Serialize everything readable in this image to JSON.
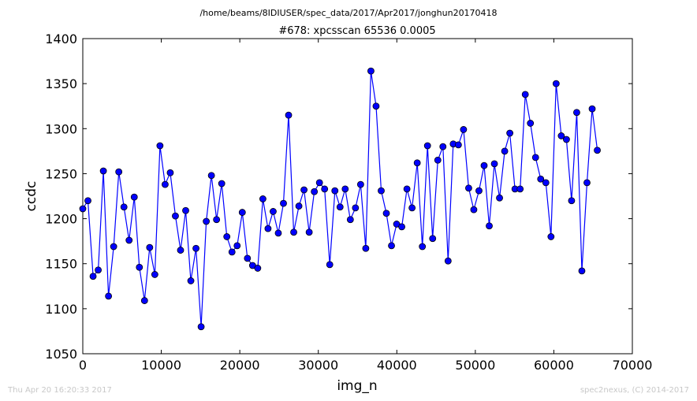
{
  "header": {
    "path": "/home/beams/8IDIUSER/spec_data/2017/Apr2017/jonghun20170418",
    "scan_title": "#678: xpcsscan 65536 0.0005"
  },
  "footer": {
    "timestamp": "Thu Apr 20 16:20:33 2017",
    "credit": "spec2nexus, (C) 2014-2017"
  },
  "colors": {
    "series": "#0000ff",
    "marker_edge": "#000000",
    "axes": "#000000"
  },
  "chart_data": {
    "type": "line",
    "title": "#678: xpcsscan 65536 0.0005",
    "xlabel": "img_n",
    "ylabel": "ccdc",
    "xlim": [
      0,
      70000
    ],
    "ylim": [
      1050,
      1400
    ],
    "xticks": [
      0,
      10000,
      20000,
      30000,
      40000,
      50000,
      60000,
      70000
    ],
    "yticks": [
      1050,
      1100,
      1150,
      1200,
      1250,
      1300,
      1350,
      1400
    ],
    "grid": false,
    "marker": "circle",
    "series": [
      {
        "x": [
          0,
          655,
          1311,
          1966,
          2621,
          3277,
          3932,
          4588,
          5243,
          5898,
          6554,
          7209,
          7864,
          8520,
          9175,
          9830,
          10486,
          11141,
          11796,
          12452,
          13107,
          13763,
          14418,
          15073,
          15729,
          16384,
          17039,
          17695,
          18350,
          19005,
          19661,
          20316,
          20972,
          21627,
          22282,
          22938,
          23593,
          24248,
          24904,
          25559,
          26214,
          26870,
          27525,
          28180,
          28836,
          29491,
          30147,
          30802,
          31457,
          32113,
          32768,
          33423,
          34079,
          34734,
          35389,
          36045,
          36700,
          37356,
          38011,
          38666,
          39322,
          39977,
          40632,
          41288,
          41943,
          42598,
          43254,
          43909,
          44565,
          45220,
          45875,
          46531,
          47186,
          47841,
          48497,
          49152,
          49807,
          50463,
          51118,
          51773,
          52429,
          53084,
          53740,
          54395,
          55050,
          55706,
          56361,
          57016,
          57672,
          58327,
          58982,
          59638,
          60293,
          60949,
          61604,
          62259,
          62915,
          63570,
          64225,
          64881,
          65536
        ],
        "y": [
          1211,
          1220,
          1136,
          1143,
          1253,
          1114,
          1169,
          1252,
          1213,
          1176,
          1224,
          1146,
          1109,
          1168,
          1138,
          1281,
          1238,
          1251,
          1203,
          1165,
          1209,
          1131,
          1167,
          1080,
          1197,
          1248,
          1199,
          1239,
          1180,
          1163,
          1170,
          1207,
          1156,
          1148,
          1145,
          1222,
          1189,
          1208,
          1184,
          1217,
          1315,
          1185,
          1214,
          1232,
          1185,
          1230,
          1240,
          1233,
          1149,
          1231,
          1213,
          1233,
          1199,
          1212,
          1238,
          1167,
          1364,
          1325,
          1231,
          1206,
          1170,
          1194,
          1191,
          1233,
          1212,
          1262,
          1169,
          1281,
          1178,
          1265,
          1280,
          1153,
          1283,
          1282,
          1299,
          1234,
          1210,
          1231,
          1259,
          1192,
          1261,
          1223,
          1275,
          1295,
          1233,
          1233,
          1338,
          1306,
          1268,
          1244,
          1240,
          1180,
          1350,
          1292,
          1288,
          1220,
          1318,
          1142,
          1240,
          1322,
          1276
        ]
      }
    ]
  }
}
